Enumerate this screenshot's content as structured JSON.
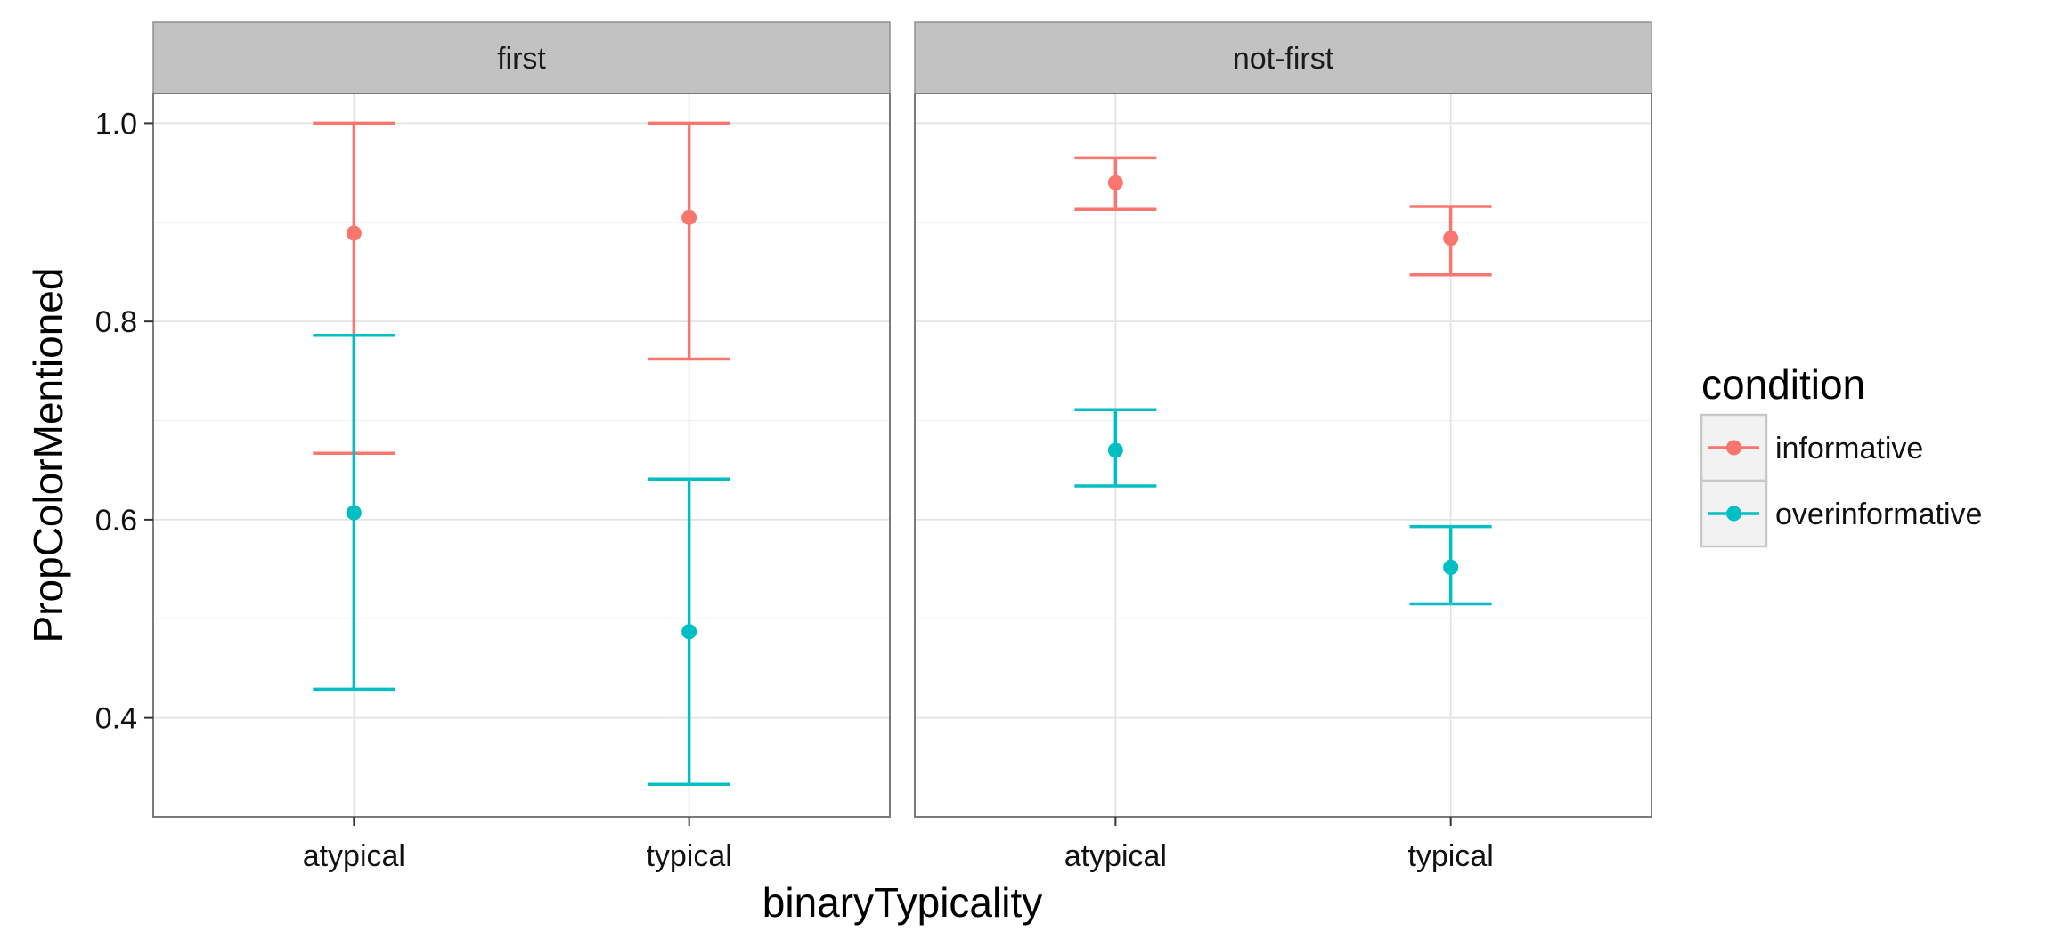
{
  "chart_data": {
    "type": "scatter",
    "subtype": "pointrange-errorbar",
    "xlabel": "binaryTypicality",
    "ylabel": "PropColorMentioned",
    "categories": [
      "atypical",
      "typical"
    ],
    "ylim": [
      0.3,
      1.03
    ],
    "yticks": [
      0.4,
      0.6,
      0.8,
      1.0
    ],
    "ytick_labels": [
      "0.4",
      "0.6",
      "0.8",
      "1.0"
    ],
    "grid": true,
    "facets": [
      "first",
      "not-first"
    ],
    "legend": {
      "title": "condition",
      "position": "right",
      "entries": [
        "informative",
        "overinformative"
      ]
    },
    "series": [
      {
        "name": "informative",
        "color": "#F8766D",
        "points": [
          {
            "facet": "first",
            "x": "atypical",
            "y": 0.889,
            "ymin": 0.667,
            "ymax": 1.0
          },
          {
            "facet": "first",
            "x": "typical",
            "y": 0.905,
            "ymin": 0.762,
            "ymax": 1.0
          },
          {
            "facet": "not-first",
            "x": "atypical",
            "y": 0.94,
            "ymin": 0.913,
            "ymax": 0.965
          },
          {
            "facet": "not-first",
            "x": "typical",
            "y": 0.884,
            "ymin": 0.847,
            "ymax": 0.916
          }
        ]
      },
      {
        "name": "overinformative",
        "color": "#00BFC4",
        "points": [
          {
            "facet": "first",
            "x": "atypical",
            "y": 0.607,
            "ymin": 0.429,
            "ymax": 0.786
          },
          {
            "facet": "first",
            "x": "typical",
            "y": 0.487,
            "ymin": 0.333,
            "ymax": 0.641
          },
          {
            "facet": "not-first",
            "x": "atypical",
            "y": 0.67,
            "ymin": 0.634,
            "ymax": 0.711
          },
          {
            "facet": "not-first",
            "x": "typical",
            "y": 0.552,
            "ymin": 0.515,
            "ymax": 0.593
          }
        ]
      }
    ]
  }
}
